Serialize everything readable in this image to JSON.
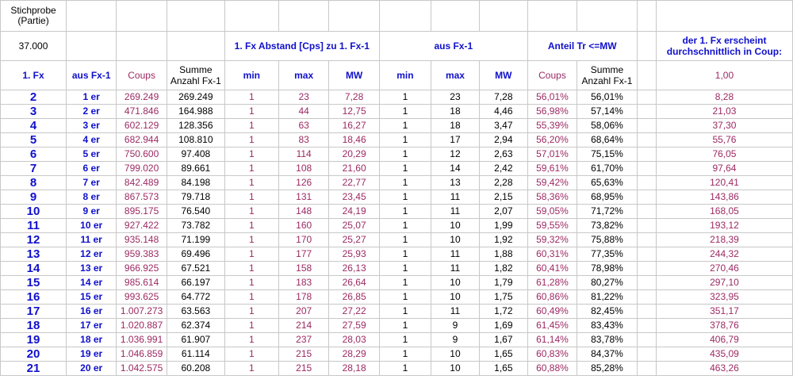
{
  "header": {
    "stichprobe_line1": "Stichprobe",
    "stichprobe_line2": "(Partie)",
    "stichprobe_value": "37.000",
    "abstand_title": "1. Fx Abstand [Cps] zu 1. Fx-1",
    "aus_title": "aus Fx-1",
    "anteil_title": "Anteil Tr <=MW",
    "erscheint_line1": "der 1. Fx erscheint",
    "erscheint_line2": "durchschnittlich in Coup:",
    "col_fx": "1. Fx",
    "col_aus": "aus Fx-1",
    "col_coups": "Coups",
    "col_summe_1": "Summe",
    "col_summe_2": "Anzahl Fx-1",
    "col_min": "min",
    "col_max": "max",
    "col_mw": "MW",
    "col_min2": "min",
    "col_max2": "max",
    "col_mw2": "MW",
    "col_coups2": "Coups",
    "col_summe2_1": "Summe",
    "col_summe2_2": "Anzahl Fx-1",
    "col_last": "1,00"
  },
  "rows": [
    {
      "fx": "2",
      "aus": "1 er",
      "coups": "269.249",
      "summe": "269.249",
      "min": "1",
      "max": "23",
      "mw": "7,28",
      "min2": "1",
      "max2": "23",
      "mw2": "7,28",
      "coups2": "56,01%",
      "summe2": "56,01%",
      "last": "8,28"
    },
    {
      "fx": "3",
      "aus": "2 er",
      "coups": "471.846",
      "summe": "164.988",
      "min": "1",
      "max": "44",
      "mw": "12,75",
      "min2": "1",
      "max2": "18",
      "mw2": "4,46",
      "coups2": "56,98%",
      "summe2": "57,14%",
      "last": "21,03"
    },
    {
      "fx": "4",
      "aus": "3 er",
      "coups": "602.129",
      "summe": "128.356",
      "min": "1",
      "max": "63",
      "mw": "16,27",
      "min2": "1",
      "max2": "18",
      "mw2": "3,47",
      "coups2": "55,39%",
      "summe2": "58,06%",
      "last": "37,30"
    },
    {
      "fx": "5",
      "aus": "4 er",
      "coups": "682.944",
      "summe": "108.810",
      "min": "1",
      "max": "83",
      "mw": "18,46",
      "min2": "1",
      "max2": "17",
      "mw2": "2,94",
      "coups2": "56,20%",
      "summe2": "68,64%",
      "last": "55,76"
    },
    {
      "fx": "6",
      "aus": "5 er",
      "coups": "750.600",
      "summe": "97.408",
      "min": "1",
      "max": "114",
      "mw": "20,29",
      "min2": "1",
      "max2": "12",
      "mw2": "2,63",
      "coups2": "57,01%",
      "summe2": "75,15%",
      "last": "76,05"
    },
    {
      "fx": "7",
      "aus": "6 er",
      "coups": "799.020",
      "summe": "89.661",
      "min": "1",
      "max": "108",
      "mw": "21,60",
      "min2": "1",
      "max2": "14",
      "mw2": "2,42",
      "coups2": "59,61%",
      "summe2": "61,70%",
      "last": "97,64"
    },
    {
      "fx": "8",
      "aus": "7 er",
      "coups": "842.489",
      "summe": "84.198",
      "min": "1",
      "max": "126",
      "mw": "22,77",
      "min2": "1",
      "max2": "13",
      "mw2": "2,28",
      "coups2": "59,42%",
      "summe2": "65,63%",
      "last": "120,41"
    },
    {
      "fx": "9",
      "aus": "8 er",
      "coups": "867.573",
      "summe": "79.718",
      "min": "1",
      "max": "131",
      "mw": "23,45",
      "min2": "1",
      "max2": "11",
      "mw2": "2,15",
      "coups2": "58,36%",
      "summe2": "68,95%",
      "last": "143,86"
    },
    {
      "fx": "10",
      "aus": "9 er",
      "coups": "895.175",
      "summe": "76.540",
      "min": "1",
      "max": "148",
      "mw": "24,19",
      "min2": "1",
      "max2": "11",
      "mw2": "2,07",
      "coups2": "59,05%",
      "summe2": "71,72%",
      "last": "168,05"
    },
    {
      "fx": "11",
      "aus": "10 er",
      "coups": "927.422",
      "summe": "73.782",
      "min": "1",
      "max": "160",
      "mw": "25,07",
      "min2": "1",
      "max2": "10",
      "mw2": "1,99",
      "coups2": "59,55%",
      "summe2": "73,82%",
      "last": "193,12"
    },
    {
      "fx": "12",
      "aus": "11 er",
      "coups": "935.148",
      "summe": "71.199",
      "min": "1",
      "max": "170",
      "mw": "25,27",
      "min2": "1",
      "max2": "10",
      "mw2": "1,92",
      "coups2": "59,32%",
      "summe2": "75,88%",
      "last": "218,39"
    },
    {
      "fx": "13",
      "aus": "12 er",
      "coups": "959.383",
      "summe": "69.496",
      "min": "1",
      "max": "177",
      "mw": "25,93",
      "min2": "1",
      "max2": "11",
      "mw2": "1,88",
      "coups2": "60,31%",
      "summe2": "77,35%",
      "last": "244,32"
    },
    {
      "fx": "14",
      "aus": "13 er",
      "coups": "966.925",
      "summe": "67.521",
      "min": "1",
      "max": "158",
      "mw": "26,13",
      "min2": "1",
      "max2": "11",
      "mw2": "1,82",
      "coups2": "60,41%",
      "summe2": "78,98%",
      "last": "270,46"
    },
    {
      "fx": "15",
      "aus": "14 er",
      "coups": "985.614",
      "summe": "66.197",
      "min": "1",
      "max": "183",
      "mw": "26,64",
      "min2": "1",
      "max2": "10",
      "mw2": "1,79",
      "coups2": "61,28%",
      "summe2": "80,27%",
      "last": "297,10"
    },
    {
      "fx": "16",
      "aus": "15 er",
      "coups": "993.625",
      "summe": "64.772",
      "min": "1",
      "max": "178",
      "mw": "26,85",
      "min2": "1",
      "max2": "10",
      "mw2": "1,75",
      "coups2": "60,86%",
      "summe2": "81,22%",
      "last": "323,95"
    },
    {
      "fx": "17",
      "aus": "16 er",
      "coups": "1.007.273",
      "summe": "63.563",
      "min": "1",
      "max": "207",
      "mw": "27,22",
      "min2": "1",
      "max2": "11",
      "mw2": "1,72",
      "coups2": "60,49%",
      "summe2": "82,45%",
      "last": "351,17"
    },
    {
      "fx": "18",
      "aus": "17 er",
      "coups": "1.020.887",
      "summe": "62.374",
      "min": "1",
      "max": "214",
      "mw": "27,59",
      "min2": "1",
      "max2": "9",
      "mw2": "1,69",
      "coups2": "61,45%",
      "summe2": "83,43%",
      "last": "378,76"
    },
    {
      "fx": "19",
      "aus": "18 er",
      "coups": "1.036.991",
      "summe": "61.907",
      "min": "1",
      "max": "237",
      "mw": "28,03",
      "min2": "1",
      "max2": "9",
      "mw2": "1,67",
      "coups2": "61,14%",
      "summe2": "83,78%",
      "last": "406,79"
    },
    {
      "fx": "20",
      "aus": "19 er",
      "coups": "1.046.859",
      "summe": "61.114",
      "min": "1",
      "max": "215",
      "mw": "28,29",
      "min2": "1",
      "max2": "10",
      "mw2": "1,65",
      "coups2": "60,83%",
      "summe2": "84,37%",
      "last": "435,09"
    },
    {
      "fx": "21",
      "aus": "20 er",
      "coups": "1.042.575",
      "summe": "60.208",
      "min": "1",
      "max": "215",
      "mw": "28,18",
      "min2": "1",
      "max2": "10",
      "mw2": "1,65",
      "coups2": "60,88%",
      "summe2": "85,28%",
      "last": "463,26"
    }
  ]
}
